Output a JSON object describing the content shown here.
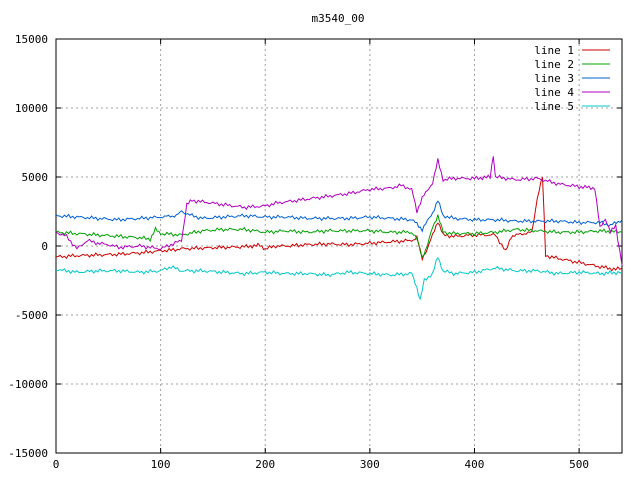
{
  "chart_data": {
    "type": "line",
    "title": "m3540_00",
    "xlabel": "",
    "ylabel": "",
    "xlim": [
      0,
      541
    ],
    "ylim": [
      -15000,
      15000
    ],
    "xticks": [
      0,
      100,
      200,
      300,
      400,
      500
    ],
    "yticks": [
      -15000,
      -10000,
      -5000,
      0,
      5000,
      10000,
      15000
    ],
    "grid": true,
    "legend_position": "top-right",
    "series": [
      {
        "name": "line 1",
        "color": "#cc0000",
        "points": [
          [
            0,
            -800
          ],
          [
            20,
            -700
          ],
          [
            40,
            -650
          ],
          [
            60,
            -600
          ],
          [
            80,
            -500
          ],
          [
            100,
            -350
          ],
          [
            110,
            -300
          ],
          [
            120,
            -200
          ],
          [
            140,
            -150
          ],
          [
            160,
            -100
          ],
          [
            180,
            -50
          ],
          [
            195,
            50
          ],
          [
            200,
            -200
          ],
          [
            210,
            0
          ],
          [
            220,
            0
          ],
          [
            240,
            100
          ],
          [
            260,
            150
          ],
          [
            280,
            100
          ],
          [
            300,
            200
          ],
          [
            320,
            300
          ],
          [
            340,
            400
          ],
          [
            345,
            600
          ],
          [
            350,
            -900
          ],
          [
            355,
            -200
          ],
          [
            360,
            800
          ],
          [
            365,
            1800
          ],
          [
            370,
            800
          ],
          [
            380,
            700
          ],
          [
            400,
            800
          ],
          [
            420,
            800
          ],
          [
            430,
            -400
          ],
          [
            435,
            700
          ],
          [
            440,
            800
          ],
          [
            455,
            1000
          ],
          [
            460,
            3500
          ],
          [
            465,
            5000
          ],
          [
            468,
            -700
          ],
          [
            480,
            -900
          ],
          [
            500,
            -1200
          ],
          [
            520,
            -1500
          ],
          [
            535,
            -1700
          ],
          [
            541,
            -1600
          ]
        ]
      },
      {
        "name": "line 2",
        "color": "#00a000",
        "points": [
          [
            0,
            1000
          ],
          [
            20,
            900
          ],
          [
            40,
            800
          ],
          [
            60,
            700
          ],
          [
            80,
            600
          ],
          [
            90,
            500
          ],
          [
            95,
            1200
          ],
          [
            100,
            900
          ],
          [
            120,
            800
          ],
          [
            140,
            1100
          ],
          [
            160,
            1200
          ],
          [
            180,
            1200
          ],
          [
            200,
            1000
          ],
          [
            220,
            1100
          ],
          [
            240,
            1000
          ],
          [
            260,
            1100
          ],
          [
            280,
            1100
          ],
          [
            300,
            1100
          ],
          [
            320,
            1000
          ],
          [
            340,
            1000
          ],
          [
            345,
            500
          ],
          [
            350,
            -800
          ],
          [
            355,
            0
          ],
          [
            360,
            1400
          ],
          [
            365,
            2200
          ],
          [
            370,
            1000
          ],
          [
            380,
            900
          ],
          [
            400,
            900
          ],
          [
            420,
            1000
          ],
          [
            440,
            1200
          ],
          [
            460,
            1100
          ],
          [
            480,
            1000
          ],
          [
            500,
            1000
          ],
          [
            520,
            1100
          ],
          [
            541,
            1000
          ]
        ]
      },
      {
        "name": "line 3",
        "color": "#0060d0",
        "points": [
          [
            0,
            2200
          ],
          [
            20,
            2100
          ],
          [
            40,
            2000
          ],
          [
            60,
            1900
          ],
          [
            80,
            2000
          ],
          [
            100,
            2100
          ],
          [
            115,
            2200
          ],
          [
            120,
            2500
          ],
          [
            130,
            2200
          ],
          [
            140,
            2000
          ],
          [
            160,
            2100
          ],
          [
            180,
            2200
          ],
          [
            200,
            2100
          ],
          [
            220,
            2100
          ],
          [
            240,
            2000
          ],
          [
            260,
            2000
          ],
          [
            280,
            2000
          ],
          [
            300,
            2100
          ],
          [
            320,
            2000
          ],
          [
            340,
            1900
          ],
          [
            345,
            1600
          ],
          [
            350,
            1200
          ],
          [
            355,
            1800
          ],
          [
            360,
            2400
          ],
          [
            365,
            3300
          ],
          [
            370,
            2200
          ],
          [
            380,
            2000
          ],
          [
            400,
            1900
          ],
          [
            420,
            1900
          ],
          [
            440,
            1800
          ],
          [
            460,
            1800
          ],
          [
            480,
            1800
          ],
          [
            500,
            1700
          ],
          [
            520,
            1700
          ],
          [
            530,
            1500
          ],
          [
            541,
            1900
          ]
        ]
      },
      {
        "name": "line 4",
        "color": "#b000c0",
        "points": [
          [
            0,
            1000
          ],
          [
            10,
            700
          ],
          [
            20,
            -200
          ],
          [
            30,
            400
          ],
          [
            40,
            200
          ],
          [
            50,
            100
          ],
          [
            60,
            -100
          ],
          [
            80,
            0
          ],
          [
            100,
            -200
          ],
          [
            120,
            400
          ],
          [
            125,
            3000
          ],
          [
            130,
            3300
          ],
          [
            140,
            3200
          ],
          [
            160,
            3000
          ],
          [
            180,
            2800
          ],
          [
            200,
            2900
          ],
          [
            210,
            3100
          ],
          [
            220,
            3200
          ],
          [
            240,
            3400
          ],
          [
            260,
            3600
          ],
          [
            280,
            3800
          ],
          [
            300,
            4100
          ],
          [
            320,
            4200
          ],
          [
            330,
            4400
          ],
          [
            340,
            4100
          ],
          [
            345,
            2500
          ],
          [
            350,
            3500
          ],
          [
            355,
            4000
          ],
          [
            360,
            4600
          ],
          [
            365,
            6200
          ],
          [
            370,
            4800
          ],
          [
            380,
            4900
          ],
          [
            400,
            4900
          ],
          [
            415,
            5000
          ],
          [
            418,
            6600
          ],
          [
            420,
            5000
          ],
          [
            440,
            4800
          ],
          [
            460,
            4900
          ],
          [
            480,
            4500
          ],
          [
            500,
            4300
          ],
          [
            515,
            4200
          ],
          [
            520,
            1300
          ],
          [
            525,
            2000
          ],
          [
            530,
            1000
          ],
          [
            535,
            1500
          ],
          [
            541,
            -1400
          ]
        ]
      },
      {
        "name": "line 5",
        "color": "#00c8c8",
        "points": [
          [
            0,
            -1700
          ],
          [
            20,
            -1900
          ],
          [
            40,
            -1800
          ],
          [
            60,
            -1800
          ],
          [
            80,
            -1900
          ],
          [
            100,
            -1800
          ],
          [
            110,
            -1500
          ],
          [
            120,
            -1800
          ],
          [
            140,
            -1800
          ],
          [
            160,
            -1900
          ],
          [
            180,
            -2000
          ],
          [
            200,
            -1900
          ],
          [
            220,
            -2000
          ],
          [
            240,
            -2000
          ],
          [
            260,
            -2100
          ],
          [
            280,
            -1900
          ],
          [
            300,
            -2000
          ],
          [
            320,
            -2100
          ],
          [
            340,
            -2000
          ],
          [
            345,
            -3000
          ],
          [
            348,
            -3900
          ],
          [
            352,
            -2500
          ],
          [
            360,
            -2000
          ],
          [
            365,
            -800
          ],
          [
            370,
            -1800
          ],
          [
            380,
            -2000
          ],
          [
            400,
            -1900
          ],
          [
            420,
            -1600
          ],
          [
            440,
            -1800
          ],
          [
            460,
            -1800
          ],
          [
            480,
            -2000
          ],
          [
            500,
            -1900
          ],
          [
            520,
            -2000
          ],
          [
            541,
            -1900
          ]
        ]
      }
    ]
  }
}
